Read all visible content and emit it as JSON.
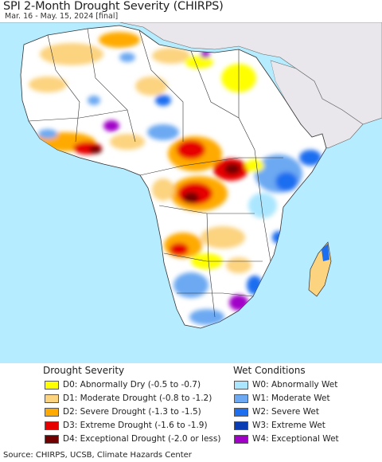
{
  "header": {
    "title": "SPI 2-Month Drought Severity (CHIRPS)",
    "subtitle": "Mar. 16 - May. 15, 2024 [final]"
  },
  "colors": {
    "ocean": "#b5ecff",
    "land_base": "#ffffff",
    "no_data_land": "#e9e7ec",
    "border": "#333333"
  },
  "legend": {
    "drought": {
      "title": "Drought Severity",
      "items": [
        {
          "label": "D0: Abnormally Dry (-0.5 to -0.7)",
          "color": "#ffff00"
        },
        {
          "label": "D1: Moderate Drought (-0.8 to -1.2)",
          "color": "#fcd37f"
        },
        {
          "label": "D2: Severe Drought (-1.3 to -1.5)",
          "color": "#ffaa00"
        },
        {
          "label": "D3: Extreme Drought (-1.6 to -1.9)",
          "color": "#e60000"
        },
        {
          "label": "D4: Exceptional Drought (-2.0 or less)",
          "color": "#730000"
        }
      ]
    },
    "wet": {
      "title": "Wet Conditions",
      "items": [
        {
          "label": "W0: Abnormally Wet",
          "color": "#aae6ff"
        },
        {
          "label": "W1: Moderate Wet",
          "color": "#6ca9f2"
        },
        {
          "label": "W2: Severe Wet",
          "color": "#1e6ef0"
        },
        {
          "label": "W3: Extreme Wet",
          "color": "#0a3cb4"
        },
        {
          "label": "W4: Exceptional Wet",
          "color": "#a000c8"
        }
      ]
    }
  },
  "footer": {
    "source": "Source: CHIRPS, UCSB, Climate Hazards Center"
  }
}
